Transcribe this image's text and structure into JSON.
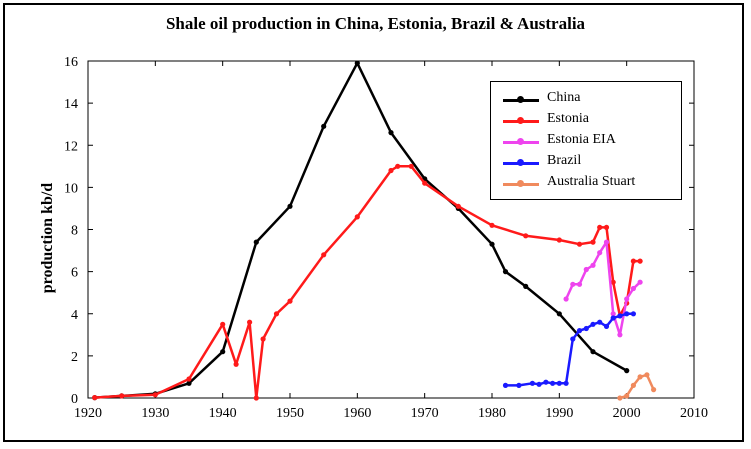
{
  "chart_data": {
    "type": "line",
    "title": "Shale oil production in China, Estonia, Brazil & Australia",
    "xlabel": "",
    "ylabel": "production kb/d",
    "xlim": [
      1920,
      2010
    ],
    "ylim": [
      0,
      16
    ],
    "xticks": [
      "1920",
      "1930",
      "1940",
      "1950",
      "1960",
      "1970",
      "1980",
      "1990",
      "2000",
      "2010"
    ],
    "yticks": [
      "0",
      "2",
      "4",
      "6",
      "8",
      "10",
      "12",
      "14",
      "16"
    ],
    "legend_position": "top-right",
    "grid": false,
    "series": [
      {
        "name": "China",
        "color": "#000000",
        "points": [
          [
            1921,
            0.02
          ],
          [
            1925,
            0.1
          ],
          [
            1930,
            0.2
          ],
          [
            1935,
            0.7
          ],
          [
            1940,
            2.2
          ],
          [
            1945,
            7.4
          ],
          [
            1950,
            9.1
          ],
          [
            1955,
            12.9
          ],
          [
            1960,
            15.9
          ],
          [
            1965,
            12.6
          ],
          [
            1970,
            10.4
          ],
          [
            1975,
            9.0
          ],
          [
            1980,
            7.3
          ],
          [
            1982,
            6.0
          ],
          [
            1985,
            5.3
          ],
          [
            1990,
            4.0
          ],
          [
            1995,
            2.2
          ],
          [
            2000,
            1.3
          ]
        ]
      },
      {
        "name": "Estonia",
        "color": "#ff1a1a",
        "points": [
          [
            1921,
            0.02
          ],
          [
            1925,
            0.1
          ],
          [
            1930,
            0.15
          ],
          [
            1935,
            0.9
          ],
          [
            1940,
            3.5
          ],
          [
            1942,
            1.6
          ],
          [
            1944,
            3.6
          ],
          [
            1945,
            0.0
          ],
          [
            1946,
            2.8
          ],
          [
            1948,
            4.0
          ],
          [
            1950,
            4.6
          ],
          [
            1955,
            6.8
          ],
          [
            1960,
            8.6
          ],
          [
            1965,
            10.8
          ],
          [
            1966,
            11.0
          ],
          [
            1968,
            11.0
          ],
          [
            1970,
            10.2
          ],
          [
            1975,
            9.1
          ],
          [
            1980,
            8.2
          ],
          [
            1985,
            7.7
          ],
          [
            1990,
            7.5
          ],
          [
            1993,
            7.3
          ],
          [
            1995,
            7.4
          ],
          [
            1996,
            8.1
          ],
          [
            1997,
            8.1
          ],
          [
            1998,
            5.5
          ],
          [
            1999,
            3.9
          ],
          [
            2000,
            4.5
          ],
          [
            2001,
            6.5
          ],
          [
            2002,
            6.5
          ]
        ]
      },
      {
        "name": "Estonia EIA",
        "color": "#ee44ee",
        "points": [
          [
            1991,
            4.7
          ],
          [
            1992,
            5.4
          ],
          [
            1993,
            5.4
          ],
          [
            1994,
            6.1
          ],
          [
            1995,
            6.3
          ],
          [
            1996,
            6.9
          ],
          [
            1997,
            7.4
          ],
          [
            1998,
            4.0
          ],
          [
            1999,
            3.0
          ],
          [
            2000,
            4.7
          ],
          [
            2001,
            5.2
          ],
          [
            2002,
            5.5
          ]
        ]
      },
      {
        "name": "Brazil",
        "color": "#1a1aff",
        "points": [
          [
            1982,
            0.6
          ],
          [
            1984,
            0.6
          ],
          [
            1986,
            0.7
          ],
          [
            1987,
            0.65
          ],
          [
            1988,
            0.75
          ],
          [
            1989,
            0.7
          ],
          [
            1990,
            0.7
          ],
          [
            1991,
            0.7
          ],
          [
            1992,
            2.8
          ],
          [
            1993,
            3.2
          ],
          [
            1994,
            3.3
          ],
          [
            1995,
            3.5
          ],
          [
            1996,
            3.6
          ],
          [
            1997,
            3.4
          ],
          [
            1998,
            3.8
          ],
          [
            1999,
            3.9
          ],
          [
            2000,
            4.0
          ],
          [
            2001,
            4.0
          ]
        ]
      },
      {
        "name": "Australia Stuart",
        "color": "#f08a5d",
        "points": [
          [
            1999,
            0.0
          ],
          [
            2000,
            0.1
          ],
          [
            2001,
            0.6
          ],
          [
            2002,
            1.0
          ],
          [
            2003,
            1.1
          ],
          [
            2004,
            0.4
          ]
        ]
      }
    ]
  }
}
